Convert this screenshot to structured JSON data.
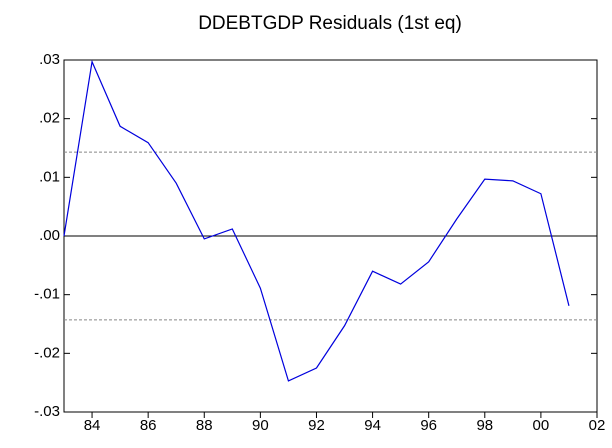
{
  "chart_data": {
    "type": "line",
    "title": "DDEBTGDP  Residuals (1st eq)",
    "x": [
      1983,
      1984,
      1985,
      1986,
      1987,
      1988,
      1989,
      1990,
      1991,
      1992,
      1993,
      1994,
      1995,
      1996,
      1997,
      1998,
      1999,
      2000,
      2001
    ],
    "series": [
      {
        "name": "Residuals",
        "color": "#0000dd",
        "values": [
          0.0,
          0.0297,
          0.0187,
          0.0159,
          0.009,
          -0.0005,
          0.0012,
          -0.0089,
          -0.0247,
          -0.0225,
          -0.0153,
          -0.006,
          -0.0082,
          -0.0044,
          0.0029,
          0.0097,
          0.0094,
          0.0072,
          -0.0119
        ]
      }
    ],
    "xlim": [
      1983,
      2002
    ],
    "xticks": [
      {
        "value": 1984,
        "label": "84"
      },
      {
        "value": 1986,
        "label": "86"
      },
      {
        "value": 1988,
        "label": "88"
      },
      {
        "value": 1990,
        "label": "90"
      },
      {
        "value": 1992,
        "label": "92"
      },
      {
        "value": 1994,
        "label": "94"
      },
      {
        "value": 1996,
        "label": "96"
      },
      {
        "value": 1998,
        "label": "98"
      },
      {
        "value": 2000,
        "label": "00"
      },
      {
        "value": 2002,
        "label": "02"
      }
    ],
    "ylim": [
      -0.03,
      0.03
    ],
    "yticks": [
      {
        "value": -0.03,
        "label": "-.03"
      },
      {
        "value": -0.02,
        "label": "-.02"
      },
      {
        "value": -0.01,
        "label": "-.01"
      },
      {
        "value": 0,
        "label": ".00"
      },
      {
        "value": 0.01,
        "label": ".01"
      },
      {
        "value": 0.02,
        "label": ".02"
      },
      {
        "value": 0.03,
        "label": ".03"
      }
    ],
    "reference_lines": [
      {
        "value": 0,
        "style": "solid"
      },
      {
        "value": 0.0143,
        "style": "dashed"
      },
      {
        "value": -0.0143,
        "style": "dashed"
      }
    ]
  }
}
